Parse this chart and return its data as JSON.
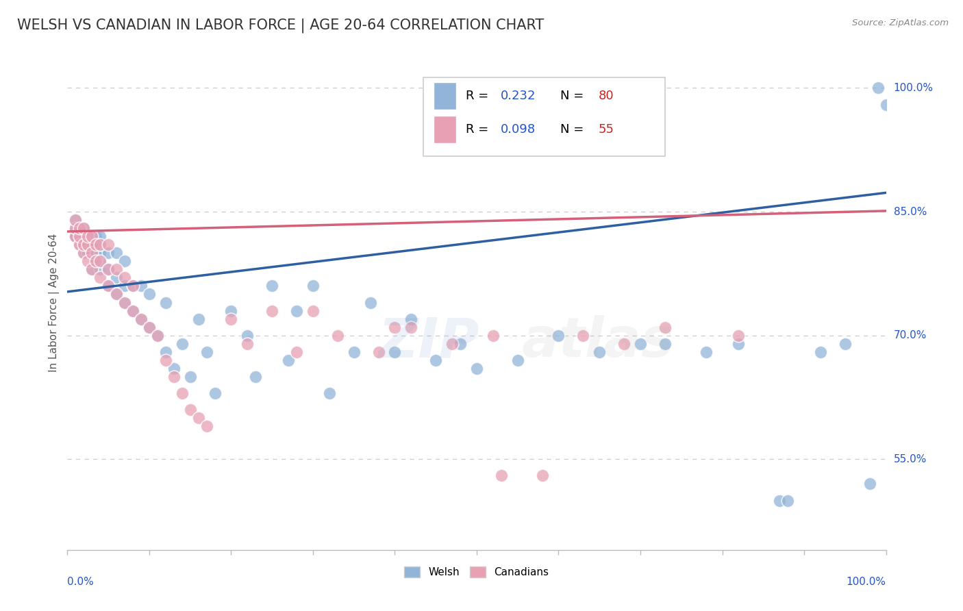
{
  "title": "WELSH VS CANADIAN IN LABOR FORCE | AGE 20-64 CORRELATION CHART",
  "source_text": "Source: ZipAtlas.com",
  "ylabel": "In Labor Force | Age 20-64",
  "ytick_labels": [
    "55.0%",
    "70.0%",
    "85.0%",
    "100.0%"
  ],
  "ytick_values": [
    0.55,
    0.7,
    0.85,
    1.0
  ],
  "xlim": [
    0.0,
    1.0
  ],
  "ylim": [
    0.44,
    1.04
  ],
  "welsh_color": "#92b4d8",
  "canadian_color": "#e8a0b4",
  "welsh_line_color": "#2e5fa3",
  "canadian_line_color": "#d4607a",
  "welsh_R": 0.232,
  "welsh_N": 80,
  "canadian_R": 0.098,
  "canadian_N": 55,
  "legend_R_color": "#2255cc",
  "legend_N_color": "#cc2222",
  "welsh_trend_x0": 0.0,
  "welsh_trend_y0": 0.753,
  "welsh_trend_x1": 1.0,
  "welsh_trend_y1": 0.873,
  "canadian_trend_x0": 0.0,
  "canadian_trend_y0": 0.826,
  "canadian_trend_x1": 1.0,
  "canadian_trend_y1": 0.851,
  "welsh_x": [
    0.01,
    0.01,
    0.01,
    0.01,
    0.01,
    0.015,
    0.015,
    0.015,
    0.02,
    0.02,
    0.02,
    0.02,
    0.025,
    0.025,
    0.025,
    0.03,
    0.03,
    0.03,
    0.03,
    0.035,
    0.035,
    0.035,
    0.04,
    0.04,
    0.04,
    0.04,
    0.04,
    0.05,
    0.05,
    0.05,
    0.06,
    0.06,
    0.06,
    0.07,
    0.07,
    0.07,
    0.08,
    0.08,
    0.09,
    0.09,
    0.1,
    0.1,
    0.11,
    0.12,
    0.12,
    0.13,
    0.14,
    0.15,
    0.16,
    0.17,
    0.18,
    0.2,
    0.22,
    0.23,
    0.25,
    0.27,
    0.28,
    0.3,
    0.32,
    0.35,
    0.37,
    0.4,
    0.42,
    0.45,
    0.48,
    0.5,
    0.55,
    0.6,
    0.65,
    0.7,
    0.73,
    0.78,
    0.82,
    0.87,
    0.88,
    0.92,
    0.95,
    0.98,
    0.99,
    1.0
  ],
  "welsh_y": [
    0.82,
    0.82,
    0.82,
    0.83,
    0.84,
    0.81,
    0.82,
    0.83,
    0.8,
    0.81,
    0.82,
    0.83,
    0.8,
    0.81,
    0.82,
    0.78,
    0.8,
    0.81,
    0.82,
    0.79,
    0.8,
    0.82,
    0.78,
    0.79,
    0.8,
    0.81,
    0.82,
    0.76,
    0.78,
    0.8,
    0.75,
    0.77,
    0.8,
    0.74,
    0.76,
    0.79,
    0.73,
    0.76,
    0.72,
    0.76,
    0.71,
    0.75,
    0.7,
    0.68,
    0.74,
    0.66,
    0.69,
    0.65,
    0.72,
    0.68,
    0.63,
    0.73,
    0.7,
    0.65,
    0.76,
    0.67,
    0.73,
    0.76,
    0.63,
    0.68,
    0.74,
    0.68,
    0.72,
    0.67,
    0.69,
    0.66,
    0.67,
    0.7,
    0.68,
    0.69,
    0.69,
    0.68,
    0.69,
    0.5,
    0.5,
    0.68,
    0.69,
    0.52,
    1.0,
    0.98
  ],
  "canadian_x": [
    0.01,
    0.01,
    0.01,
    0.015,
    0.015,
    0.015,
    0.02,
    0.02,
    0.02,
    0.025,
    0.025,
    0.025,
    0.03,
    0.03,
    0.03,
    0.035,
    0.035,
    0.04,
    0.04,
    0.04,
    0.05,
    0.05,
    0.05,
    0.06,
    0.06,
    0.07,
    0.07,
    0.08,
    0.08,
    0.09,
    0.1,
    0.11,
    0.12,
    0.13,
    0.14,
    0.15,
    0.16,
    0.17,
    0.2,
    0.22,
    0.25,
    0.28,
    0.3,
    0.33,
    0.38,
    0.4,
    0.42,
    0.47,
    0.52,
    0.58,
    0.63,
    0.68,
    0.73,
    0.82,
    0.53
  ],
  "canadian_y": [
    0.82,
    0.83,
    0.84,
    0.81,
    0.82,
    0.83,
    0.8,
    0.81,
    0.83,
    0.79,
    0.81,
    0.82,
    0.78,
    0.8,
    0.82,
    0.79,
    0.81,
    0.77,
    0.79,
    0.81,
    0.76,
    0.78,
    0.81,
    0.75,
    0.78,
    0.74,
    0.77,
    0.73,
    0.76,
    0.72,
    0.71,
    0.7,
    0.67,
    0.65,
    0.63,
    0.61,
    0.6,
    0.59,
    0.72,
    0.69,
    0.73,
    0.68,
    0.73,
    0.7,
    0.68,
    0.71,
    0.71,
    0.69,
    0.7,
    0.53,
    0.7,
    0.69,
    0.71,
    0.7,
    0.53
  ]
}
